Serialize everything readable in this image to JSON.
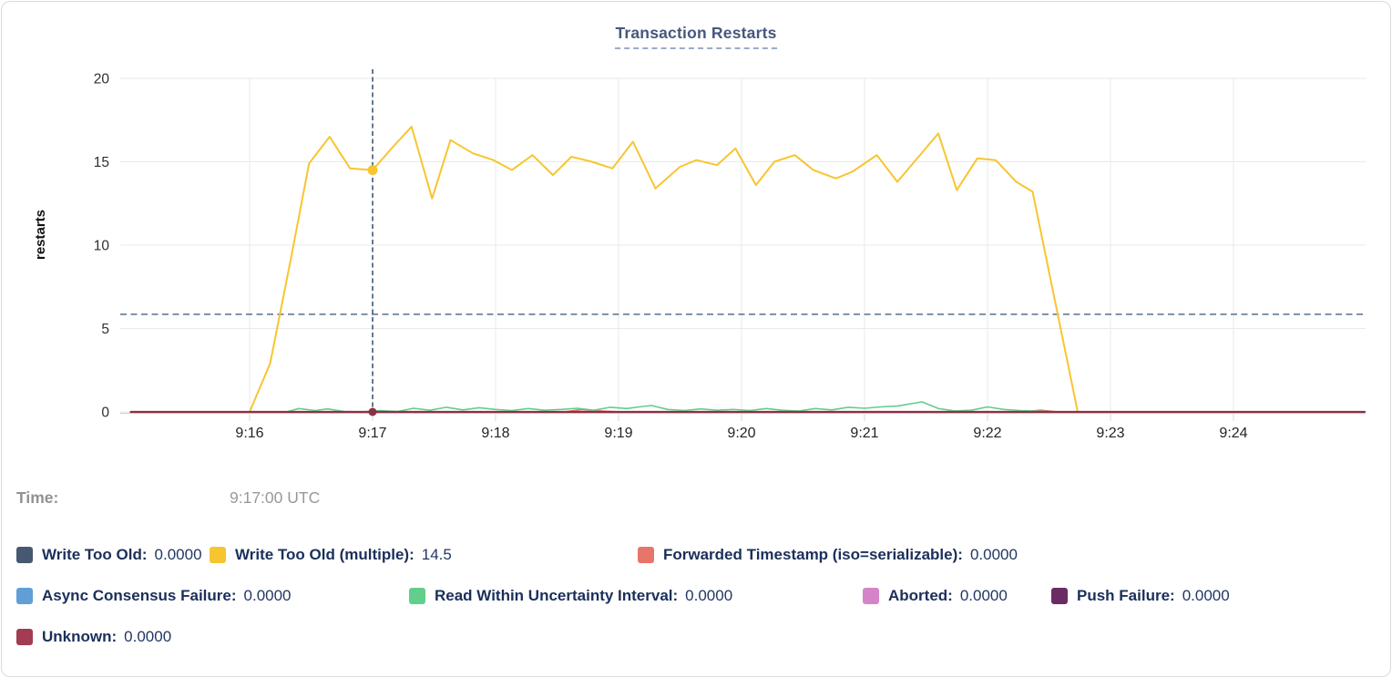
{
  "card": {
    "title": "Transaction Restarts"
  },
  "time_row": {
    "label": "Time:",
    "value": "9:17:00 UTC"
  },
  "legend_rows": [
    [
      {
        "id": "write-too-old",
        "label": "Write Too Old:",
        "value": "0.0000",
        "color": "#475872"
      },
      {
        "id": "write-too-old-multiple",
        "label": "Write Too Old (multiple):",
        "value": "14.5",
        "color": "#f7c52f"
      },
      {
        "id": "forwarded-timestamp",
        "label": "Forwarded Timestamp (iso=serializable):",
        "value": "0.0000",
        "color": "#e8756b"
      }
    ],
    [
      {
        "id": "async-consensus-failure",
        "label": "Async Consensus Failure:",
        "value": "0.0000",
        "color": "#5f9fd6"
      },
      {
        "id": "read-within-uncertainty-interval",
        "label": "Read Within Uncertainty Interval:",
        "value": "0.0000",
        "color": "#62ce8b"
      },
      {
        "id": "aborted",
        "label": "Aborted:",
        "value": "0.0000",
        "color": "#d584c9"
      },
      {
        "id": "push-failure",
        "label": "Push Failure:",
        "value": "0.0000",
        "color": "#6a2c62"
      }
    ],
    [
      {
        "id": "unknown",
        "label": "Unknown:",
        "value": "0.0000",
        "color": "#a23c52"
      }
    ]
  ],
  "chart_data": {
    "type": "line",
    "title": "Transaction Restarts",
    "ylabel": "restarts",
    "ylim": [
      0,
      20
    ],
    "yticks": [
      0,
      5,
      10,
      15,
      20
    ],
    "x_unit": "seconds after 9:15:00 UTC",
    "xlim": [
      2,
      604
    ],
    "xticks": [
      {
        "t": 60,
        "label": "9:16"
      },
      {
        "t": 120,
        "label": "9:17"
      },
      {
        "t": 180,
        "label": "9:18"
      },
      {
        "t": 240,
        "label": "9:19"
      },
      {
        "t": 300,
        "label": "9:20"
      },
      {
        "t": 360,
        "label": "9:21"
      },
      {
        "t": 420,
        "label": "9:22"
      },
      {
        "t": 480,
        "label": "9:23"
      },
      {
        "t": 540,
        "label": "9:24"
      }
    ],
    "grid": true,
    "ref_line_value": 5.85,
    "hover": {
      "t": 120,
      "time_label": "9:17:00 UTC",
      "points": [
        {
          "series": "Write Too Old (multiple)",
          "value": 14.5
        },
        {
          "series": "Unknown",
          "value": 0
        }
      ]
    },
    "series": [
      {
        "name": "Write Too Old",
        "color": "#475872",
        "width": 1.4,
        "points": [
          [
            2,
            0
          ],
          [
            604,
            0
          ]
        ]
      },
      {
        "name": "Async Consensus Failure",
        "color": "#5f9fd6",
        "width": 1.4,
        "points": [
          [
            2,
            0
          ],
          [
            604,
            0
          ]
        ]
      },
      {
        "name": "Aborted",
        "color": "#d584c9",
        "width": 1.4,
        "points": [
          [
            2,
            0
          ],
          [
            604,
            0
          ]
        ]
      },
      {
        "name": "Push Failure",
        "color": "#6a2c62",
        "width": 1.4,
        "points": [
          [
            2,
            0
          ],
          [
            604,
            0
          ]
        ]
      },
      {
        "name": "Forwarded Timestamp (iso=serializable)",
        "color": "#e8756b",
        "width": 1.8,
        "points": [
          [
            2,
            0
          ],
          [
            214,
            0
          ],
          [
            222,
            0.15
          ],
          [
            230,
            0.06
          ],
          [
            240,
            0
          ],
          [
            438,
            0
          ],
          [
            446,
            0.1
          ],
          [
            454,
            0
          ],
          [
            604,
            0
          ]
        ]
      },
      {
        "name": "Read Within Uncertainty Interval",
        "color": "#62ce8b",
        "width": 1.6,
        "points": [
          [
            2,
            0
          ],
          [
            78,
            0
          ],
          [
            84,
            0.2
          ],
          [
            92,
            0.08
          ],
          [
            98,
            0.18
          ],
          [
            106,
            0.03
          ],
          [
            114,
            0
          ],
          [
            124,
            0.08
          ],
          [
            132,
            0.02
          ],
          [
            140,
            0.22
          ],
          [
            148,
            0.1
          ],
          [
            156,
            0.28
          ],
          [
            164,
            0.12
          ],
          [
            172,
            0.25
          ],
          [
            180,
            0.15
          ],
          [
            188,
            0.08
          ],
          [
            196,
            0.2
          ],
          [
            204,
            0.1
          ],
          [
            212,
            0.15
          ],
          [
            220,
            0.22
          ],
          [
            228,
            0.1
          ],
          [
            236,
            0.28
          ],
          [
            244,
            0.2
          ],
          [
            250,
            0.3
          ],
          [
            256,
            0.38
          ],
          [
            264,
            0.15
          ],
          [
            272,
            0.08
          ],
          [
            280,
            0.18
          ],
          [
            288,
            0.1
          ],
          [
            296,
            0.15
          ],
          [
            304,
            0.08
          ],
          [
            312,
            0.2
          ],
          [
            320,
            0.1
          ],
          [
            328,
            0.05
          ],
          [
            336,
            0.2
          ],
          [
            344,
            0.12
          ],
          [
            352,
            0.28
          ],
          [
            360,
            0.22
          ],
          [
            368,
            0.3
          ],
          [
            376,
            0.35
          ],
          [
            388,
            0.6
          ],
          [
            396,
            0.2
          ],
          [
            404,
            0.06
          ],
          [
            412,
            0.1
          ],
          [
            420,
            0.3
          ],
          [
            428,
            0.15
          ],
          [
            436,
            0.08
          ],
          [
            446,
            0.04
          ],
          [
            454,
            0
          ],
          [
            604,
            0
          ]
        ]
      },
      {
        "name": "Write Too Old (multiple)",
        "color": "#f7c52f",
        "width": 2,
        "points": [
          [
            60,
            0
          ],
          [
            70,
            2.9
          ],
          [
            80,
            9.1
          ],
          [
            89,
            14.9
          ],
          [
            99,
            16.5
          ],
          [
            109,
            14.6
          ],
          [
            120,
            14.5
          ],
          [
            130,
            15.9
          ],
          [
            139,
            17.1
          ],
          [
            149,
            12.8
          ],
          [
            158,
            16.3
          ],
          [
            169,
            15.5
          ],
          [
            179,
            15.1
          ],
          [
            188,
            14.5
          ],
          [
            198,
            15.4
          ],
          [
            208,
            14.2
          ],
          [
            217,
            15.3
          ],
          [
            227,
            15.0
          ],
          [
            237,
            14.6
          ],
          [
            247,
            16.2
          ],
          [
            258,
            13.4
          ],
          [
            270,
            14.7
          ],
          [
            278,
            15.1
          ],
          [
            288,
            14.8
          ],
          [
            297,
            15.8
          ],
          [
            307,
            13.6
          ],
          [
            316,
            15.0
          ],
          [
            326,
            15.4
          ],
          [
            335,
            14.5
          ],
          [
            346,
            14.0
          ],
          [
            354,
            14.4
          ],
          [
            366,
            15.4
          ],
          [
            376,
            13.8
          ],
          [
            396,
            16.7
          ],
          [
            405,
            13.3
          ],
          [
            415,
            15.2
          ],
          [
            424,
            15.1
          ],
          [
            434,
            13.8
          ],
          [
            442,
            13.2
          ],
          [
            464,
            0
          ]
        ]
      },
      {
        "name": "Unknown",
        "color": "#8e3044",
        "width": 2.2,
        "points": [
          [
            2,
            0
          ],
          [
            604,
            0
          ]
        ]
      }
    ]
  }
}
